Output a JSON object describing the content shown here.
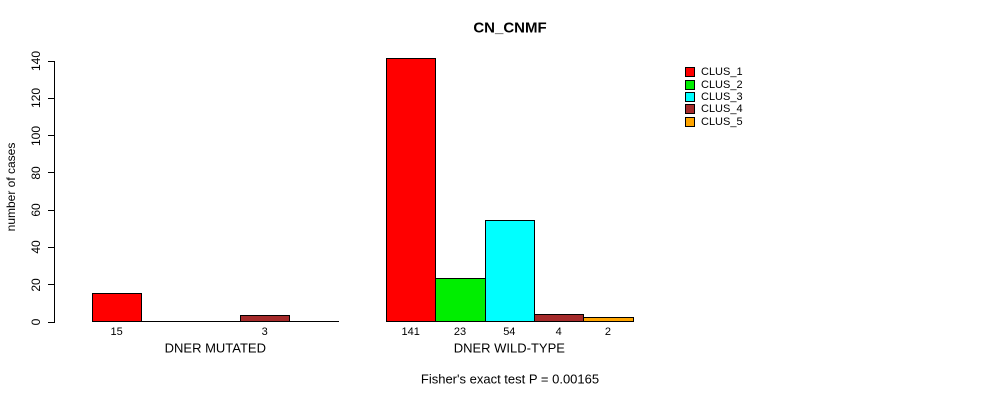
{
  "title": "CN_CNMF",
  "chart_data": {
    "type": "bar",
    "title": "CN_CNMF",
    "xlabel": "",
    "ylabel": "number of cases",
    "ylim": [
      0,
      140
    ],
    "yticks": [
      0,
      20,
      40,
      60,
      80,
      100,
      120,
      140
    ],
    "grid": false,
    "legend_position": "right-outside",
    "categories": [
      "DNER MUTATED",
      "DNER WILD-TYPE"
    ],
    "series": [
      {
        "name": "CLUS_1",
        "color": "#FF0000",
        "values": [
          15,
          141
        ]
      },
      {
        "name": "CLUS_2",
        "color": "#00EE00",
        "values": [
          0,
          23
        ]
      },
      {
        "name": "CLUS_3",
        "color": "#00FFFF",
        "values": [
          0,
          54
        ]
      },
      {
        "name": "CLUS_4",
        "color": "#A52A2A",
        "values": [
          3,
          4
        ]
      },
      {
        "name": "CLUS_5",
        "color": "#FFA500",
        "values": [
          0,
          2
        ]
      }
    ],
    "bar_labels": {
      "DNER MUTATED": [
        "15",
        "",
        "",
        "3",
        ""
      ],
      "DNER WILD-TYPE": [
        "141",
        "23",
        "54",
        "4",
        "2"
      ]
    },
    "annotation": "Fisher's exact test P = 0.00165"
  },
  "legend": {
    "entries": [
      {
        "label": "CLUS_1",
        "color": "#FF0000"
      },
      {
        "label": "CLUS_2",
        "color": "#00EE00"
      },
      {
        "label": "CLUS_3",
        "color": "#00FFFF"
      },
      {
        "label": "CLUS_4",
        "color": "#A52A2A"
      },
      {
        "label": "CLUS_5",
        "color": "#FFA500"
      }
    ]
  },
  "footer": {
    "annotation": "Fisher's exact test P = 0.00165"
  }
}
